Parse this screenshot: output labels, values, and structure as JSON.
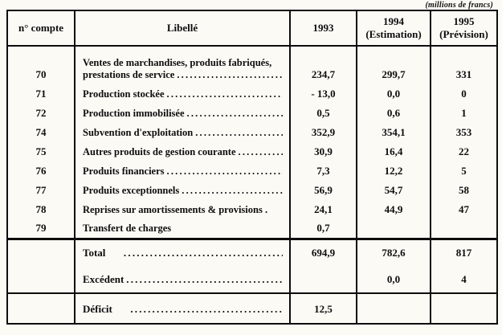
{
  "note": "(millions de francs)",
  "table": {
    "headers": [
      "n° compte",
      "Libellé",
      "1993",
      "1994\n(Estimation)",
      "1995\n(Prévision)"
    ],
    "rows": [
      {
        "compte": "70",
        "lines": [
          "Ventes de marchandises, produits fabriqués,",
          "prestations de service"
        ],
        "leader": true,
        "values": [
          "234,7",
          "299,7",
          "331"
        ]
      },
      {
        "compte": "71",
        "lines": [
          "Production stockée"
        ],
        "leader": true,
        "values": [
          "- 13,0",
          "0,0",
          "0"
        ]
      },
      {
        "compte": "72",
        "lines": [
          "Production immobilisée"
        ],
        "leader": true,
        "values": [
          "0,5",
          "0,6",
          "1"
        ]
      },
      {
        "compte": "74",
        "lines": [
          "Subvention d'exploitation"
        ],
        "leader": true,
        "values": [
          "352,9",
          "354,1",
          "353"
        ]
      },
      {
        "compte": "75",
        "lines": [
          "Autres produits de gestion courante"
        ],
        "leader": true,
        "values": [
          "30,9",
          "16,4",
          "22"
        ]
      },
      {
        "compte": "76",
        "lines": [
          "Produits financiers"
        ],
        "leader": true,
        "values": [
          "7,3",
          "12,2",
          "5"
        ]
      },
      {
        "compte": "77",
        "lines": [
          "Produits exceptionnels"
        ],
        "leader": true,
        "values": [
          "56,9",
          "54,7",
          "58"
        ]
      },
      {
        "compte": "78",
        "lines": [
          "Reprises sur amortissements & provisions ."
        ],
        "leader": false,
        "values": [
          "24,1",
          "44,9",
          "47"
        ]
      },
      {
        "compte": "79",
        "lines": [
          "Transfert de charges"
        ],
        "leader": false,
        "values": [
          "0,7",
          "",
          ""
        ]
      }
    ],
    "totals": [
      {
        "compte": "",
        "lines": [
          "Total      "
        ],
        "leader": true,
        "values": [
          "694,9",
          "782,6",
          "817"
        ]
      },
      {
        "compte": "",
        "lines": [
          "Excédent"
        ],
        "leader": true,
        "values": [
          "",
          "0,0",
          "4"
        ]
      },
      {
        "compte": "",
        "lines": [
          "Déficit      "
        ],
        "leader": true,
        "values": [
          "12,5",
          "",
          ""
        ]
      }
    ]
  }
}
